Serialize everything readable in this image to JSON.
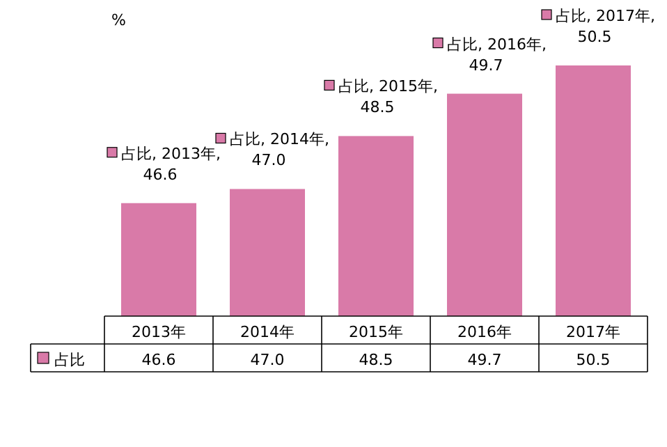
{
  "chart_data": {
    "type": "bar",
    "ylabel": "%",
    "categories": [
      "2013年",
      "2014年",
      "2015年",
      "2016年",
      "2017年"
    ],
    "series": [
      {
        "name": "占比",
        "color": "#d97aa8",
        "values": [
          46.6,
          47.0,
          48.5,
          49.7,
          50.5
        ],
        "value_labels": [
          "46.6",
          "47.0",
          "48.5",
          "49.7",
          "50.5"
        ]
      }
    ],
    "annotations": [
      {
        "text": "占比, 2013年,",
        "x": "2013年",
        "y": 46.6
      },
      {
        "text": "占比, 2014年,",
        "x": "2014年",
        "y": 47.0
      },
      {
        "text": "占比, 2015年,",
        "x": "2015年",
        "y": 48.5
      },
      {
        "text": "占比, 2016年,",
        "x": "2016年",
        "y": 49.7
      },
      {
        "text": "占比, 2017年,",
        "x": "2017年",
        "y": 50.5
      }
    ],
    "ylim": [
      43.4,
      50.5
    ],
    "data_labels": true,
    "legend": "bottom"
  }
}
